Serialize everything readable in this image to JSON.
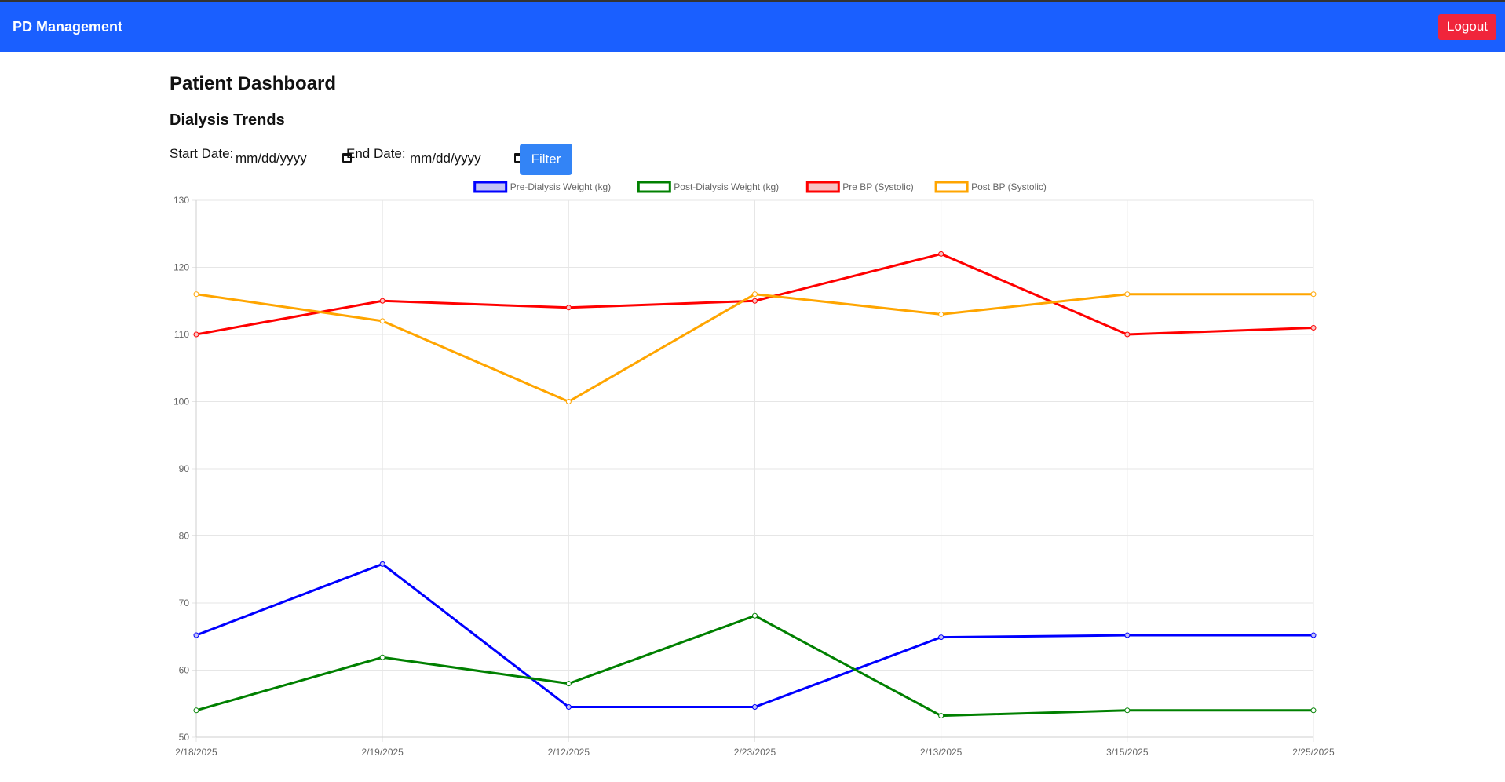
{
  "app": {
    "brand": "PD Management",
    "logout_label": "Logout"
  },
  "page": {
    "title": "Patient Dashboard",
    "section_title": "Dialysis Trends"
  },
  "filters": {
    "start_label": "Start Date:",
    "start_value": "mm/dd/yyyy",
    "end_label": "End Date:",
    "end_value": "mm/dd/yyyy",
    "filter_label": "Filter"
  },
  "chart_data": {
    "type": "line",
    "categories": [
      "2/18/2025",
      "2/19/2025",
      "2/12/2025",
      "2/23/2025",
      "2/13/2025",
      "3/15/2025",
      "2/25/2025"
    ],
    "ylim": [
      50,
      130
    ],
    "yticks": [
      50,
      60,
      70,
      80,
      90,
      100,
      110,
      120,
      130
    ],
    "grid": true,
    "legend_position": "top",
    "series": [
      {
        "name": "Pre-Dialysis Weight (kg)",
        "color": "#0000ff",
        "fill": "#c4c4f5",
        "values": [
          65.2,
          75.8,
          54.5,
          54.5,
          64.9,
          65.2,
          65.2
        ]
      },
      {
        "name": "Post-Dialysis Weight (kg)",
        "color": "#008000",
        "fill": "#ffffff",
        "values": [
          54,
          61.9,
          58,
          68.1,
          53.2,
          54,
          54
        ]
      },
      {
        "name": "Pre BP (Systolic)",
        "color": "#ff0000",
        "fill": "#f7c4c4",
        "values": [
          110,
          115,
          114,
          115,
          122,
          110,
          111
        ]
      },
      {
        "name": "Post BP (Systolic)",
        "color": "#ffa500",
        "fill": "#ffffff",
        "values": [
          116,
          112,
          100,
          116,
          113,
          116,
          116
        ]
      }
    ]
  }
}
